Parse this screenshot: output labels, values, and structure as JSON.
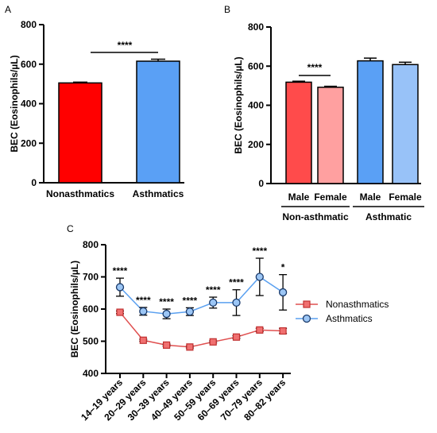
{
  "chart_data": [
    {
      "panel": "A",
      "type": "bar",
      "ylabel": "BEC (Eosinophils/µL)",
      "ylim": [
        0,
        800
      ],
      "yticks": [
        0,
        200,
        400,
        600,
        800
      ],
      "categories": [
        "Nonasthmatics",
        "Asthmatics"
      ],
      "values": [
        505,
        615
      ],
      "errors": [
        4,
        10
      ],
      "colors": [
        "#ff0000",
        "#5aa0f5"
      ],
      "significance": [
        {
          "between": [
            0,
            1
          ],
          "label": "****"
        }
      ]
    },
    {
      "panel": "B",
      "type": "bar",
      "ylabel": "BEC (Eosinophils/µL)",
      "ylim": [
        0,
        800
      ],
      "yticks": [
        0,
        200,
        400,
        600,
        800
      ],
      "categories": [
        "Male",
        "Female",
        "Male",
        "Female"
      ],
      "groups": [
        {
          "label": "Non-asthmatic",
          "indices": [
            0,
            1
          ]
        },
        {
          "label": "Asthmatic",
          "indices": [
            2,
            3
          ]
        }
      ],
      "values": [
        518,
        492,
        627,
        608
      ],
      "errors": [
        5,
        5,
        14,
        12
      ],
      "colors": [
        "#ff4b4b",
        "#ffa0a0",
        "#5aa0f5",
        "#98c2f8"
      ],
      "significance": [
        {
          "between": [
            0,
            1
          ],
          "label": "****"
        }
      ]
    },
    {
      "panel": "C",
      "type": "line",
      "ylabel": "BEC (Eosinophils/µL)",
      "ylim": [
        400,
        800
      ],
      "yticks": [
        400,
        500,
        600,
        700,
        800
      ],
      "categories": [
        "14–19 years",
        "20–29 years",
        "30–39 years",
        "40–49 years",
        "50–59 years",
        "60–69 years",
        "70–79 years",
        "80–82 years"
      ],
      "series": [
        {
          "name": "Nonasthmatics",
          "color": "#e05050",
          "marker": "square",
          "values": [
            590,
            503,
            488,
            482,
            498,
            513,
            535,
            532
          ],
          "errors": [
            4,
            3,
            3,
            3,
            3,
            4,
            5,
            8
          ]
        },
        {
          "name": "Asthmatics",
          "color": "#5aa0f0",
          "marker": "circle",
          "values": [
            668,
            593,
            585,
            592,
            620,
            620,
            700,
            652
          ],
          "errors": [
            28,
            12,
            15,
            12,
            17,
            40,
            58,
            55
          ]
        }
      ],
      "significance": [
        "****",
        "****",
        "****",
        "****",
        "****",
        "****",
        "****",
        "*"
      ]
    }
  ],
  "labels": {
    "panel_a": "A",
    "panel_b": "B",
    "panel_c": "C"
  }
}
